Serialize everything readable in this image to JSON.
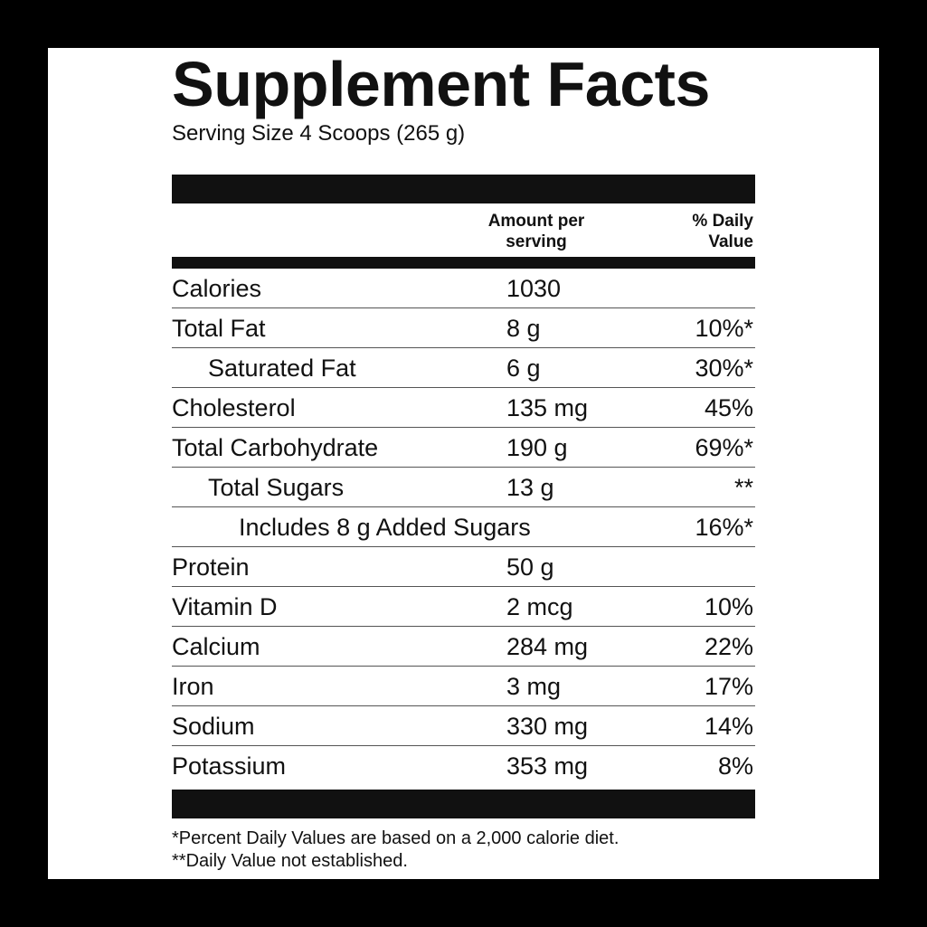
{
  "title": "Supplement Facts",
  "serving_size": "Serving Size 4 Scoops (265 g)",
  "header": {
    "amount": "Amount per serving",
    "daily_value": "% Daily Value"
  },
  "rows": [
    {
      "name": "Calories",
      "amount": "1030"
    },
    {
      "name": "Total Fat",
      "amount": "8 g",
      "daily_value": "10%*"
    },
    {
      "name": "Saturated Fat",
      "amount": "6 g",
      "daily_value": "30%*"
    },
    {
      "name": "Cholesterol",
      "amount": "135 mg",
      "daily_value": "45%"
    },
    {
      "name": "Total Carbohydrate",
      "amount": "190 g",
      "daily_value": "69%*"
    },
    {
      "name": "Total Sugars",
      "amount": "13 g",
      "daily_value": "**"
    },
    {
      "name": "Includes 8 g Added Sugars",
      "daily_value": "16%*"
    },
    {
      "name": "Protein",
      "amount": "50 g"
    },
    {
      "name": "Vitamin D",
      "amount": "2 mcg",
      "daily_value": "10%"
    },
    {
      "name": "Calcium",
      "amount": "284 mg",
      "daily_value": "22%"
    },
    {
      "name": "Iron",
      "amount": "3 mg",
      "daily_value": "17%"
    },
    {
      "name": "Sodium",
      "amount": "330 mg",
      "daily_value": "14%"
    },
    {
      "name": "Potassium",
      "amount": "353 mg",
      "daily_value": "8%"
    }
  ],
  "footnotes": [
    "*Percent Daily Values are based on a 2,000 calorie diet.",
    "**Daily Value not established."
  ]
}
